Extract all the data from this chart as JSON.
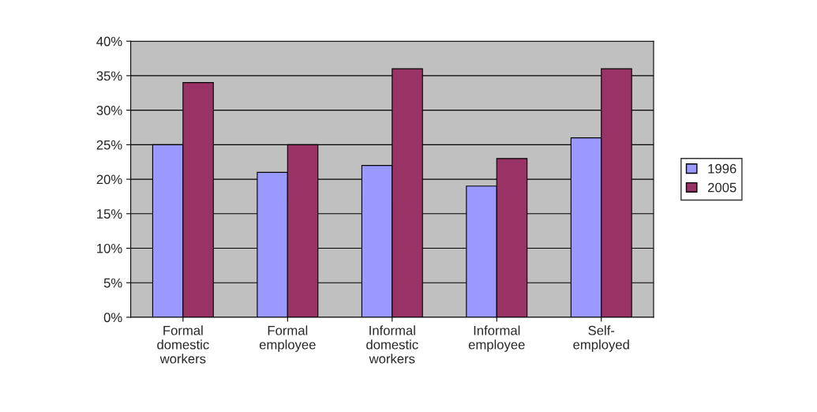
{
  "chart_data": {
    "type": "bar",
    "categories": [
      "Formal\ndomestic\nworkers",
      "Formal\nemployee",
      "Informal\ndomestic\nworkers",
      "Informal\nemployee",
      "Self-\nemployed"
    ],
    "series": [
      {
        "name": "1996",
        "color": "#9999ff",
        "values": [
          25,
          21,
          22,
          19,
          26
        ]
      },
      {
        "name": "2005",
        "color": "#993366",
        "values": [
          34,
          25,
          36,
          23,
          36
        ]
      }
    ],
    "ylim": [
      0,
      40
    ],
    "yticks": [
      {
        "value": 0,
        "label": "0%"
      },
      {
        "value": 5,
        "label": "5%"
      },
      {
        "value": 10,
        "label": "10%"
      },
      {
        "value": 15,
        "label": "15%"
      },
      {
        "value": 20,
        "label": "20%"
      },
      {
        "value": 25,
        "label": "25%"
      },
      {
        "value": 30,
        "label": "30%"
      },
      {
        "value": 35,
        "label": "35%"
      },
      {
        "value": 40,
        "label": "40%"
      }
    ],
    "grid": "y",
    "legend": "right"
  }
}
